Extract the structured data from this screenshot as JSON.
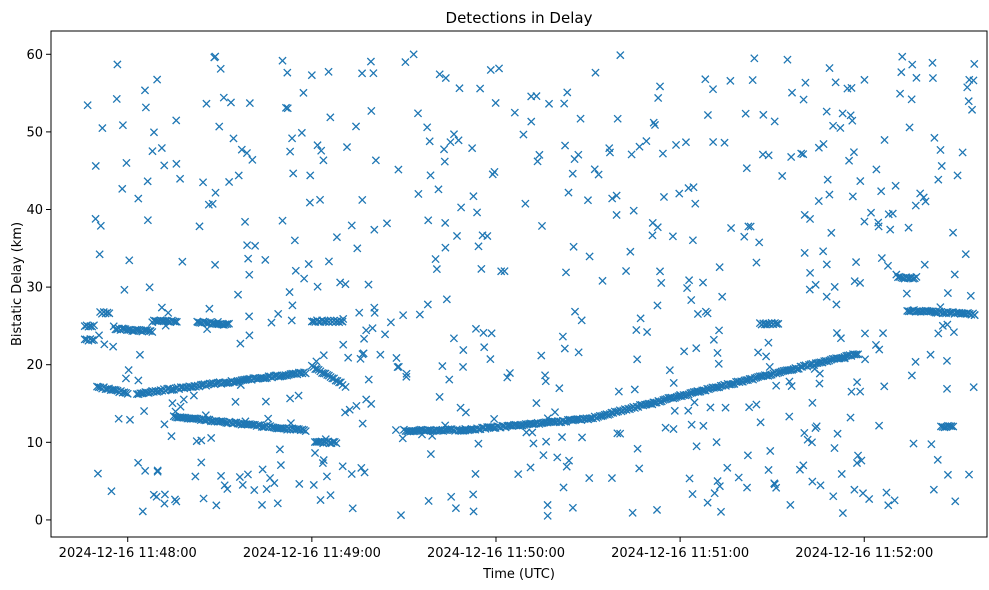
{
  "chart_data": {
    "type": "scatter",
    "title": "Detections in Delay",
    "xlabel": "Time (UTC)",
    "ylabel": "Bistatic Delay (km)",
    "marker": "x",
    "color": "#1f77b4",
    "grid": false,
    "xlim": [
      "2024-12-16 11:47:35",
      "2024-12-16 11:52:40"
    ],
    "ylim": [
      -2.2,
      63
    ],
    "xticks": [
      "2024-12-16 11:48:00",
      "2024-12-16 11:49:00",
      "2024-12-16 11:50:00",
      "2024-12-16 11:51:00",
      "2024-12-16 11:52:00"
    ],
    "yticks": [
      0,
      10,
      20,
      30,
      40,
      50,
      60
    ],
    "x_window": [
      "2024-12-16 11:47:46",
      "2024-12-16 11:52:36"
    ],
    "tracks": [
      {
        "x": [
          "2024-12-16 11:47:50",
          "2024-12-16 11:48:00"
        ],
        "y": [
          17.2,
          16.3
        ]
      },
      {
        "x": [
          "2024-12-16 11:48:03",
          "2024-12-16 11:48:58"
        ],
        "y": [
          16.3,
          19.0
        ]
      },
      {
        "x": [
          "2024-12-16 11:48:15",
          "2024-12-16 11:48:58"
        ],
        "y": [
          13.3,
          11.5
        ]
      },
      {
        "x": [
          "2024-12-16 11:49:00",
          "2024-12-16 11:49:10"
        ],
        "y": [
          19.8,
          17.5
        ]
      },
      {
        "x": [
          "2024-12-16 11:49:30",
          "2024-12-16 11:49:50"
        ],
        "y": [
          11.5,
          11.6
        ]
      },
      {
        "x": [
          "2024-12-16 11:49:50",
          "2024-12-16 11:50:30"
        ],
        "y": [
          11.6,
          13.0
        ]
      },
      {
        "x": [
          "2024-12-16 11:50:30",
          "2024-12-16 11:51:00"
        ],
        "y": [
          13.0,
          16.0
        ]
      },
      {
        "x": [
          "2024-12-16 11:51:00",
          "2024-12-16 11:51:58"
        ],
        "y": [
          16.0,
          21.4
        ]
      },
      {
        "x": [
          "2024-12-16 11:47:46",
          "2024-12-16 11:47:49"
        ],
        "y": [
          25.0,
          25.0
        ]
      },
      {
        "x": [
          "2024-12-16 11:47:46",
          "2024-12-16 11:47:49"
        ],
        "y": [
          23.2,
          23.2
        ]
      },
      {
        "x": [
          "2024-12-16 11:47:51",
          "2024-12-16 11:47:54"
        ],
        "y": [
          26.7,
          26.6
        ]
      },
      {
        "x": [
          "2024-12-16 11:47:56",
          "2024-12-16 11:48:08"
        ],
        "y": [
          24.6,
          24.3
        ]
      },
      {
        "x": [
          "2024-12-16 11:48:08",
          "2024-12-16 11:48:16"
        ],
        "y": [
          25.6,
          25.6
        ]
      },
      {
        "x": [
          "2024-12-16 11:48:23",
          "2024-12-16 11:48:33"
        ],
        "y": [
          25.5,
          25.2
        ]
      },
      {
        "x": [
          "2024-12-16 11:49:00",
          "2024-12-16 11:49:10"
        ],
        "y": [
          25.6,
          25.6
        ]
      },
      {
        "x": [
          "2024-12-16 11:49:01",
          "2024-12-16 11:49:08"
        ],
        "y": [
          10.0,
          10.0
        ]
      },
      {
        "x": [
          "2024-12-16 11:51:26",
          "2024-12-16 11:51:32"
        ],
        "y": [
          25.3,
          25.3
        ]
      },
      {
        "x": [
          "2024-12-16 11:52:14",
          "2024-12-16 11:52:36"
        ],
        "y": [
          27.0,
          26.5
        ]
      },
      {
        "x": [
          "2024-12-16 11:52:11",
          "2024-12-16 11:52:17"
        ],
        "y": [
          31.2,
          31.2
        ]
      },
      {
        "x": [
          "2024-12-16 11:52:25",
          "2024-12-16 11:52:29"
        ],
        "y": [
          12.0,
          12.0
        ]
      }
    ],
    "noise": {
      "y_range": [
        0.5,
        60
      ],
      "random_seed": 20241216
    }
  }
}
